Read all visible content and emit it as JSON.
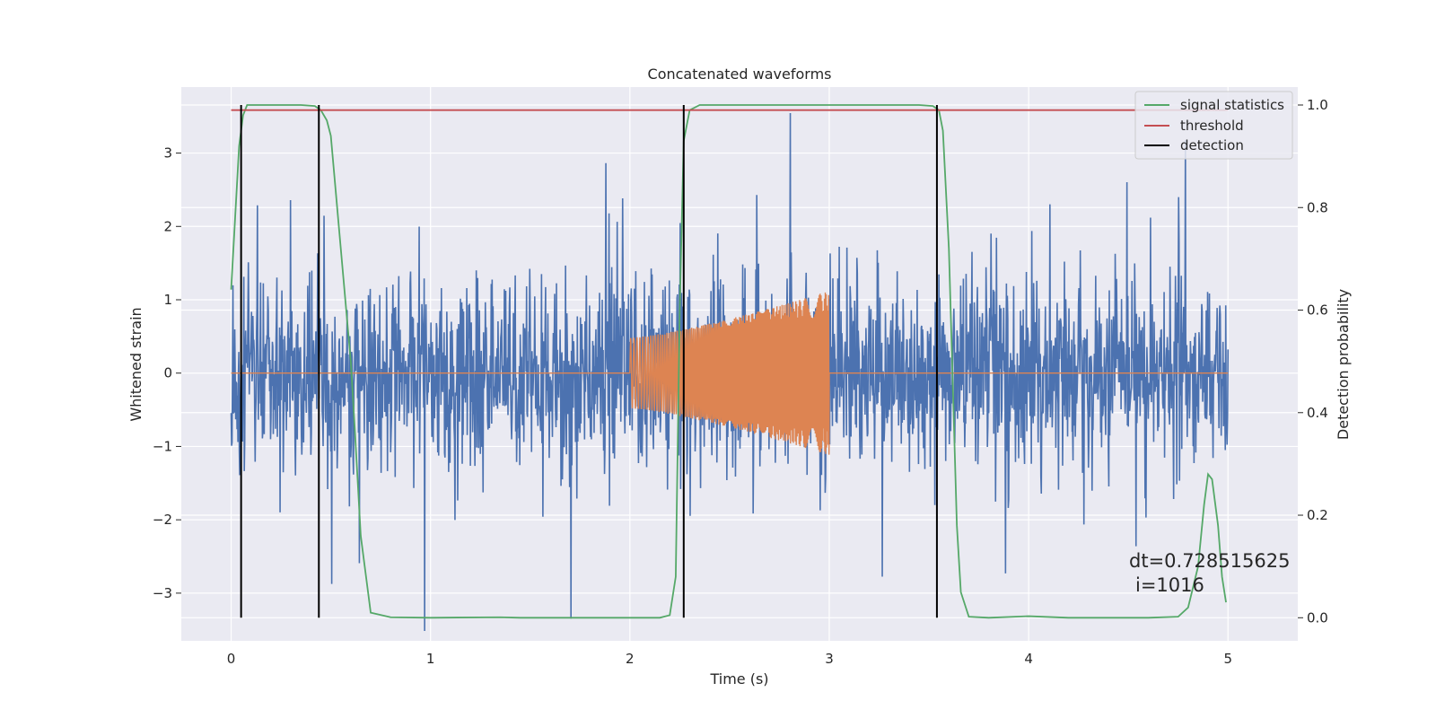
{
  "chart_data": {
    "type": "line",
    "title": "Concatenated waveforms",
    "xlabel": "Time (s)",
    "ylabel": "Whitened strain",
    "y2label": "Detection probability",
    "xlim": [
      -0.25,
      5.35
    ],
    "ylim": [
      -3.65,
      3.9
    ],
    "y2lim": [
      -0.045,
      1.035
    ],
    "xticks": [
      "0",
      "1",
      "2",
      "3",
      "4",
      "5"
    ],
    "yticks": [
      "−3",
      "−2",
      "−1",
      "0",
      "1",
      "2",
      "3"
    ],
    "y2ticks": [
      "0.0",
      "0.2",
      "0.4",
      "0.6",
      "0.8",
      "1.0"
    ],
    "grid": true,
    "legend_position": "top-right",
    "series": [
      {
        "name": "",
        "axis": "left",
        "color": "#4c72b0",
        "description_values": "whitened strain noise, approx. Gaussian, amplitude to about ±3.5, x from 0 to 5",
        "x_range": [
          0,
          5
        ],
        "std": 0.62,
        "peak": 3.55
      },
      {
        "name": "",
        "axis": "left",
        "color": "#dd8452",
        "x_range": [
          0,
          5
        ],
        "chirp_start": 2.0,
        "chirp_end": 3.0,
        "amplitude_start": 0.48,
        "amplitude_end": 1.12
      },
      {
        "name": "signal statistics",
        "axis": "right",
        "color": "#55a868",
        "x": [
          0,
          0.02,
          0.04,
          0.06,
          0.08,
          0.1,
          0.2,
          0.35,
          0.42,
          0.45,
          0.48,
          0.5,
          0.55,
          0.6,
          0.62,
          0.65,
          0.7,
          0.8,
          1.0,
          1.35,
          1.45,
          1.6,
          2.0,
          2.15,
          2.2,
          2.23,
          2.25,
          2.27,
          2.3,
          2.35,
          2.5,
          3.0,
          3.45,
          3.52,
          3.55,
          3.57,
          3.6,
          3.62,
          3.64,
          3.66,
          3.7,
          3.8,
          4.0,
          4.2,
          4.6,
          4.75,
          4.8,
          4.85,
          4.88,
          4.9,
          4.92,
          4.95,
          4.97,
          4.99
        ],
        "y": [
          0.64,
          0.78,
          0.92,
          0.98,
          1.0,
          1.0,
          1.0,
          1.0,
          0.998,
          0.99,
          0.97,
          0.94,
          0.72,
          0.5,
          0.37,
          0.16,
          0.01,
          0.001,
          0.0,
          0.001,
          0.0,
          0.0,
          0.0,
          0.0,
          0.005,
          0.08,
          0.6,
          0.93,
          0.99,
          1.0,
          1.0,
          1.0,
          1.0,
          0.998,
          0.99,
          0.95,
          0.72,
          0.45,
          0.18,
          0.05,
          0.002,
          0.0,
          0.003,
          0.0,
          0.0,
          0.002,
          0.02,
          0.1,
          0.22,
          0.28,
          0.27,
          0.18,
          0.08,
          0.03
        ]
      },
      {
        "name": "threshold",
        "axis": "right",
        "color": "#c44e52",
        "x": [
          0,
          5
        ],
        "y": [
          0.99,
          0.99
        ]
      },
      {
        "name": "detection",
        "axis": "right",
        "color": "#000000",
        "x": [
          0.05,
          0.44,
          2.27,
          3.54
        ],
        "ymin": 0.0,
        "ymax": 1.0
      }
    ],
    "annotation": {
      "dt": "dt=0.728515625",
      "i": "i=1016"
    }
  }
}
